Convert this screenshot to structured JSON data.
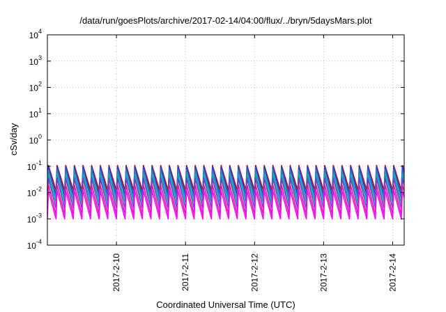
{
  "chart_data": {
    "type": "line",
    "title": "/data/run/goesPlots/archive/2017-02-14/04:00/flux/../bryn/5daysMars.plot",
    "xlabel": "Coordinated Universal Time (UTC)",
    "ylabel": "cSv/day",
    "yscale": "log",
    "ylim": [
      0.0001,
      10000
    ],
    "y_ticks": [
      {
        "base": "10",
        "exp": "-4"
      },
      {
        "base": "10",
        "exp": "-3"
      },
      {
        "base": "10",
        "exp": "-2"
      },
      {
        "base": "10",
        "exp": "-1"
      },
      {
        "base": "10",
        "exp": "0"
      },
      {
        "base": "10",
        "exp": "1"
      },
      {
        "base": "10",
        "exp": "2"
      },
      {
        "base": "10",
        "exp": "3"
      },
      {
        "base": "10",
        "exp": "4"
      }
    ],
    "xlim": [
      "2017-02-09 00:00",
      "2017-02-14 04:00"
    ],
    "x_ticks": [
      "2017-2-10",
      "2017-2-11",
      "2017-2-12",
      "2017-2-13",
      "2017-2-14"
    ],
    "grid": true,
    "pattern": {
      "description": "periodic sawtooth: sharp rise then exponential-like decay, ~8 cycles per day",
      "cycles_per_day": 8,
      "start": "2017-02-09 00:00",
      "end": "2017-02-14 04:00"
    },
    "series": [
      {
        "color": "#dd0000",
        "peak": 0.11,
        "trough": 0.012
      },
      {
        "color": "#1f3fd6",
        "peak": 0.1,
        "trough": 0.008
      },
      {
        "color": "#2a7ad0",
        "peak": 0.075,
        "trough": 0.006
      },
      {
        "color": "#0aa8a0",
        "peak": 0.05,
        "trough": 0.004
      },
      {
        "color": "#6a3fd0",
        "peak": 0.035,
        "trough": 0.0025
      },
      {
        "color": "#d020a0",
        "peak": 0.02,
        "trough": 0.0015
      },
      {
        "color": "#ff00ff",
        "peak": 0.012,
        "trough": 0.001
      }
    ]
  }
}
